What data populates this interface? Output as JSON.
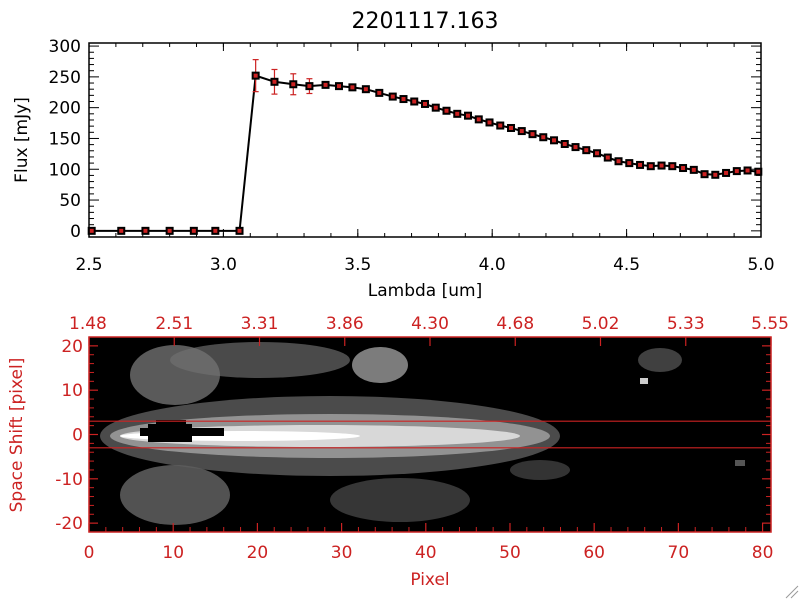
{
  "title": "2201117.163",
  "colors": {
    "axis_top": "#000000",
    "axis_bottom": "#cc2222",
    "marker": "#000000",
    "marker_fill": "#cc2222",
    "errorbar": "#cc2222",
    "line": "#000000",
    "guide": "#cc2222"
  },
  "chart_data": [
    {
      "type": "line",
      "title": "2201117.163",
      "xlabel": "Lambda [um]",
      "ylabel": "Flux [mJy]",
      "xlim": [
        2.5,
        5.0
      ],
      "ylim": [
        -10,
        305
      ],
      "xticks": [
        "2.5",
        "3.0",
        "3.5",
        "4.0",
        "4.5",
        "5.0"
      ],
      "yticks": [
        "0",
        "50",
        "100",
        "150",
        "200",
        "250",
        "300"
      ],
      "series": [
        {
          "x": [
            2.51,
            2.62,
            2.71,
            2.8,
            2.89,
            2.97,
            3.06,
            3.12,
            3.19,
            3.26,
            3.32,
            3.38,
            3.43,
            3.48,
            3.53,
            3.58,
            3.63,
            3.67,
            3.71,
            3.75,
            3.79,
            3.83,
            3.87,
            3.91,
            3.95,
            3.99,
            4.03,
            4.07,
            4.11,
            4.15,
            4.19,
            4.23,
            4.27,
            4.31,
            4.35,
            4.39,
            4.43,
            4.47,
            4.51,
            4.55,
            4.59,
            4.63,
            4.67,
            4.71,
            4.75,
            4.79,
            4.83,
            4.87,
            4.91,
            4.95,
            4.99
          ],
          "y": [
            0,
            0,
            0,
            0,
            0,
            0,
            0,
            252,
            242,
            238,
            235,
            237,
            235,
            233,
            230,
            224,
            218,
            214,
            210,
            206,
            200,
            195,
            190,
            187,
            181,
            176,
            171,
            167,
            162,
            157,
            152,
            147,
            141,
            136,
            131,
            126,
            119,
            113,
            110,
            107,
            105,
            106,
            105,
            102,
            99,
            92,
            91,
            94,
            97,
            98,
            96
          ],
          "yerr": [
            0,
            0,
            0,
            0,
            0,
            0,
            0,
            26,
            20,
            17,
            12,
            0,
            0,
            0,
            0,
            0,
            0,
            0,
            0,
            0,
            0,
            0,
            0,
            0,
            0,
            0,
            0,
            0,
            0,
            0,
            0,
            0,
            0,
            0,
            0,
            0,
            0,
            0,
            0,
            0,
            0,
            0,
            0,
            0,
            0,
            0,
            0,
            0,
            0,
            0,
            0
          ]
        }
      ]
    },
    {
      "type": "heatmap",
      "xlabel": "Pixel",
      "ylabel": "Space Shift [pixel]",
      "xlim": [
        0,
        81
      ],
      "ylim": [
        -22,
        22
      ],
      "xticks": [
        "0",
        "10",
        "20",
        "30",
        "40",
        "50",
        "60",
        "70",
        "80"
      ],
      "yticks": [
        "-20",
        "-10",
        "0",
        "10",
        "20"
      ],
      "top_ticks": [
        "1.48",
        "2.51",
        "3.31",
        "3.86",
        "4.30",
        "4.68",
        "5.02",
        "5.33",
        "5.55"
      ],
      "guide_lines": [
        3,
        -3
      ]
    }
  ]
}
